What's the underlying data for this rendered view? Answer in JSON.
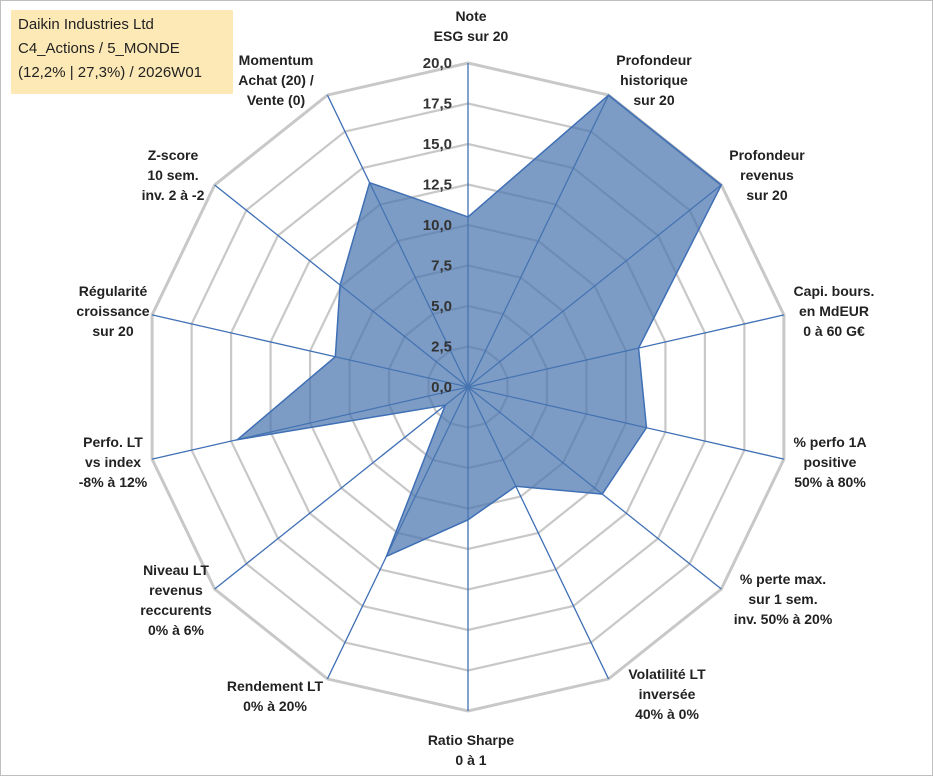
{
  "info_box": {
    "line1": "Daikin Industries Ltd",
    "line2": "C4_Actions / 5_MONDE",
    "line3": "(12,2% | 27,3%) / 2026W01"
  },
  "colors": {
    "fill": "#4a76b0",
    "stroke": "#3f6fb5",
    "grid": "#c8c8c8",
    "info_bg": "#fde9b6"
  },
  "chart_data": {
    "type": "radar",
    "title": "",
    "rlim": [
      0,
      20
    ],
    "ticks": [
      "0,0",
      "2,5",
      "5,0",
      "7,5",
      "10,0",
      "12,5",
      "15,0",
      "17,5",
      "20,0"
    ],
    "grid": true,
    "axes": [
      {
        "label": [
          "Note",
          "ESG sur 20"
        ],
        "value": 10.5
      },
      {
        "label": [
          "Profondeur",
          "historique",
          "sur 20"
        ],
        "value": 20.0
      },
      {
        "label": [
          "Profondeur",
          "revenus",
          "sur 20"
        ],
        "value": 20.0
      },
      {
        "label": [
          "Capi. bours.",
          "en MdEUR",
          "0 à 60 G€"
        ],
        "value": 10.8
      },
      {
        "label": [
          "% perfo 1A",
          "positive",
          "50% à 80%"
        ],
        "value": 11.3
      },
      {
        "label": [
          "% perte max.",
          "sur 1 sem.",
          "inv. 50% à 20%"
        ],
        "value": 10.6
      },
      {
        "label": [
          "Volatilité LT",
          "inversée",
          "40% à 0%"
        ],
        "value": 6.8
      },
      {
        "label": [
          "Ratio Sharpe",
          "0 à 1"
        ],
        "value": 8.2
      },
      {
        "label": [
          "Rendement LT",
          "0% à 20%"
        ],
        "value": 11.6
      },
      {
        "label": [
          "Niveau LT",
          "revenus",
          "reccurents",
          "0% à 6%"
        ],
        "value": 1.8
      },
      {
        "label": [
          "Perfo. LT",
          "vs index",
          "-8% à 12%"
        ],
        "value": 14.6
      },
      {
        "label": [
          "Régularité",
          "croissance",
          "sur 20"
        ],
        "value": 8.4
      },
      {
        "label": [
          "Z-score",
          "10 sem.",
          "inv. 2 à -2"
        ],
        "value": 10.1
      },
      {
        "label": [
          "Momentum",
          "Achat (20) /",
          "Vente (0)"
        ],
        "value": 14.0
      }
    ]
  }
}
